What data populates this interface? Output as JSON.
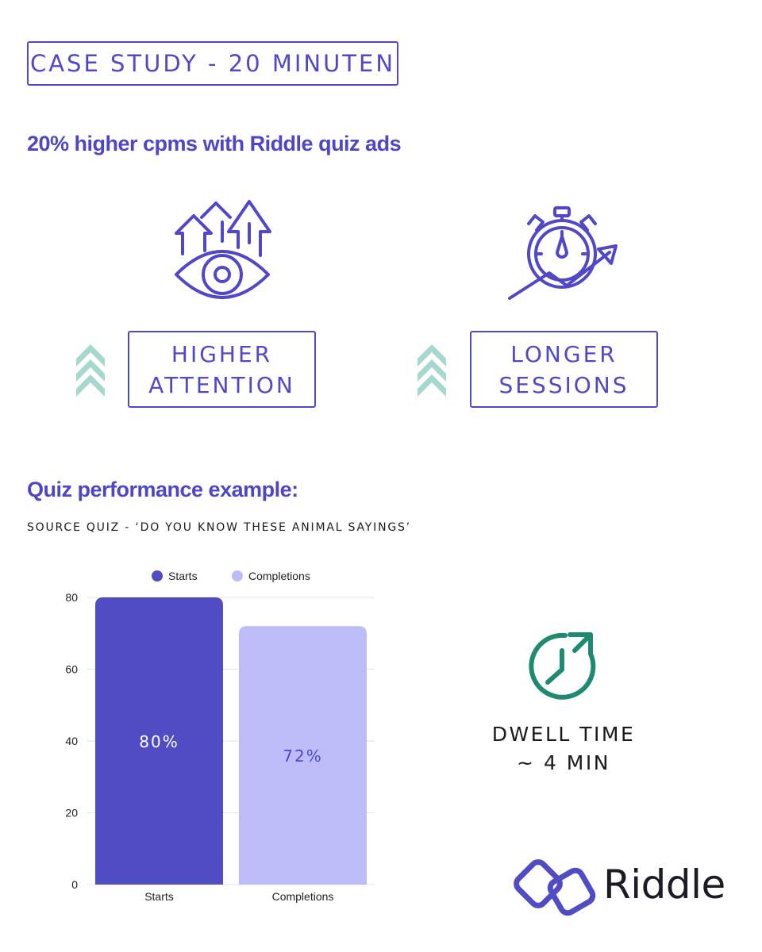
{
  "header": {
    "tag": "CASE STUDY - 20 MINUTEN",
    "headline": "20% higher cpms with Riddle quiz ads"
  },
  "features": [
    {
      "line1": "HIGHER",
      "line2": "ATTENTION",
      "icon": "eye-arrows-icon"
    },
    {
      "line1": "LONGER",
      "line2": "SESSIONS",
      "icon": "stopwatch-growth-icon"
    }
  ],
  "section": {
    "title": "Quiz performance example:",
    "source": "SOURCE QUIZ - ‘DO YOU KNOW THESE ANIMAL SAYINGS’"
  },
  "dwell": {
    "line1": "DWELL TIME",
    "line2": "~ 4 MIN",
    "icon": "clock-refresh-icon"
  },
  "brand": {
    "name": "Riddle",
    "icon": "riddle-logo-icon"
  },
  "colors": {
    "primary": "#4f4cc4",
    "secondary": "#bcbdf8",
    "chevron": "#a7d8cf",
    "dwell_icon": "#1e8a72"
  },
  "chart_data": {
    "type": "bar",
    "categories": [
      "Starts",
      "Completions"
    ],
    "series": [
      {
        "name": "Starts",
        "values": [
          80,
          null
        ],
        "labels": [
          "80%",
          null
        ]
      },
      {
        "name": "Completions",
        "values": [
          null,
          72
        ],
        "labels": [
          null,
          "72%"
        ]
      }
    ],
    "ylim": [
      0,
      80
    ],
    "yticks": [
      0,
      20,
      40,
      60,
      80
    ],
    "legend": "top-center",
    "grid": true,
    "colors": [
      "#4f4cc4",
      "#bcbdf8"
    ]
  }
}
